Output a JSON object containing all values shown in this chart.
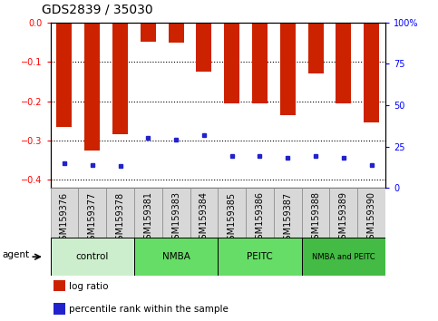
{
  "title": "GDS2839 / 35030",
  "samples": [
    "GSM159376",
    "GSM159377",
    "GSM159378",
    "GSM159381",
    "GSM159383",
    "GSM159384",
    "GSM159385",
    "GSM159386",
    "GSM159387",
    "GSM159388",
    "GSM159389",
    "GSM159390"
  ],
  "log_ratio": [
    -0.265,
    -0.325,
    -0.285,
    -0.048,
    -0.052,
    -0.125,
    -0.205,
    -0.205,
    -0.235,
    -0.13,
    -0.205,
    -0.255
  ],
  "percentile_rank": [
    15,
    14,
    13,
    30,
    29,
    32,
    19,
    19,
    18,
    19,
    18,
    14
  ],
  "bar_color": "#cc2200",
  "marker_color": "#2222cc",
  "ylim_left": [
    -0.42,
    0.0
  ],
  "ylim_right": [
    0,
    100
  ],
  "yticks_left": [
    0.0,
    -0.1,
    -0.2,
    -0.3,
    -0.4
  ],
  "yticks_right": [
    0,
    25,
    50,
    75,
    100
  ],
  "ytick_labels_right": [
    "0",
    "25",
    "50",
    "75",
    "100%"
  ],
  "groups": [
    {
      "label": "control",
      "start": 0,
      "end": 3,
      "color": "#cceecc"
    },
    {
      "label": "NMBA",
      "start": 3,
      "end": 6,
      "color": "#66dd66"
    },
    {
      "label": "PEITC",
      "start": 6,
      "end": 9,
      "color": "#66dd66"
    },
    {
      "label": "NMBA and PEITC",
      "start": 9,
      "end": 12,
      "color": "#44bb44"
    }
  ],
  "legend_items": [
    {
      "color": "#cc2200",
      "label": "log ratio"
    },
    {
      "color": "#2222cc",
      "label": "percentile rank within the sample"
    }
  ],
  "title_fontsize": 10,
  "tick_fontsize": 7,
  "bar_width": 0.55,
  "xtick_bg_color": "#d8d8d8",
  "xtick_border_color": "#888888"
}
